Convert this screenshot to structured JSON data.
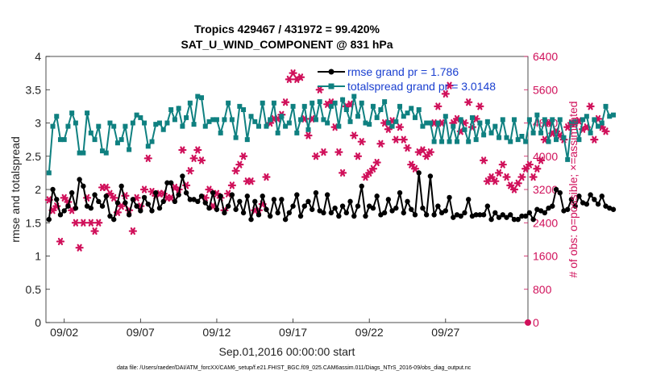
{
  "chart_data": {
    "type": "line",
    "title_line1": "Tropics 429467 / 431972 = 99.420%",
    "title_line2": "SAT_U_WIND_COMPONENT @ 831 hPa",
    "xlabel": "Sep.01,2016 00:00:00 start",
    "ylabel_left": "rmse and totalspread",
    "ylabel_right": "# of obs: o=possible; ×=assimilated",
    "xlim": [
      0.3,
      31.9
    ],
    "ylim_left": [
      0,
      4
    ],
    "ylim_right": [
      0,
      6400
    ],
    "x_ticks": [
      {
        "x": 1.5,
        "label": "09/02"
      },
      {
        "x": 6.5,
        "label": "09/07"
      },
      {
        "x": 11.5,
        "label": "09/12"
      },
      {
        "x": 16.5,
        "label": "09/17"
      },
      {
        "x": 21.5,
        "label": "09/22"
      },
      {
        "x": 26.5,
        "label": "09/27"
      }
    ],
    "y_ticks_left": [
      "0",
      "0.5",
      "1",
      "1.5",
      "2",
      "2.5",
      "3",
      "3.5",
      "4"
    ],
    "y_ticks_right": [
      "0",
      "800",
      "1600",
      "2400",
      "3200",
      "4000",
      "4800",
      "5600",
      "6400"
    ],
    "colors": {
      "rmse": "#000000",
      "spread": "#0f8080",
      "obs": "#d0105a",
      "legend_text": "#1a3fd0",
      "right_axis": "#d0105a"
    },
    "legend": [
      {
        "name": "rmse grand pr = 1.786"
      },
      {
        "name": "totalspread grand pr = 3.0148"
      }
    ],
    "series": [
      {
        "name": "rmse",
        "x0": 0.5,
        "dx": 0.25,
        "values": [
          1.55,
          2.0,
          1.85,
          1.62,
          1.68,
          1.75,
          1.95,
          1.72,
          2.15,
          2.05,
          1.75,
          1.72,
          1.92,
          1.82,
          1.75,
          1.9,
          1.6,
          1.55,
          1.8,
          2.05,
          1.8,
          1.62,
          1.85,
          1.75,
          1.68,
          1.88,
          1.78,
          1.68,
          1.95,
          1.72,
          1.82,
          2.1,
          2.1,
          1.82,
          1.92,
          2.2,
          1.95,
          1.85,
          1.85,
          1.82,
          1.9,
          1.8,
          1.72,
          1.95,
          1.7,
          1.9,
          1.65,
          1.75,
          1.92,
          1.7,
          1.82,
          1.65,
          1.9,
          1.55,
          1.82,
          1.62,
          1.9,
          1.7,
          1.6,
          1.85,
          1.65,
          1.85,
          1.55,
          1.65,
          1.75,
          1.92,
          1.6,
          1.75,
          1.82,
          1.7,
          1.95,
          1.68,
          1.65,
          1.92,
          1.65,
          1.72,
          1.6,
          1.75,
          1.65,
          1.82,
          1.6,
          1.75,
          2.05,
          1.6,
          1.75,
          1.72,
          1.9,
          1.62,
          1.65,
          1.85,
          1.68,
          1.72,
          1.95,
          1.65,
          1.82,
          1.7,
          1.62,
          2.25,
          1.72,
          1.62,
          2.2,
          1.62,
          1.75,
          1.65,
          1.68,
          1.88,
          1.58,
          1.62,
          1.6,
          1.65,
          1.85,
          1.6,
          1.62,
          1.62,
          1.62,
          1.75,
          1.55,
          1.65,
          1.58,
          1.62,
          1.58,
          1.62,
          1.55,
          1.55,
          1.6,
          1.6,
          1.65,
          1.55,
          1.7,
          1.68,
          1.65,
          1.72,
          1.75,
          2.0,
          1.95,
          1.68,
          1.7,
          1.85,
          1.75,
          1.9,
          1.8,
          1.78,
          1.92,
          1.85,
          1.78,
          1.9,
          1.75,
          1.72,
          1.7
        ]
      },
      {
        "name": "totalspread",
        "x0": 0.5,
        "dx": 0.25,
        "values": [
          2.25,
          2.95,
          3.1,
          2.75,
          2.75,
          2.95,
          3.15,
          3.0,
          2.55,
          2.55,
          3.15,
          2.85,
          2.75,
          2.95,
          2.58,
          2.55,
          3.0,
          2.95,
          2.7,
          2.75,
          2.95,
          2.6,
          3.0,
          3.12,
          3.08,
          3.0,
          2.65,
          2.72,
          2.98,
          3.0,
          2.9,
          3.0,
          3.2,
          3.05,
          3.22,
          2.95,
          3.08,
          3.3,
          2.98,
          3.4,
          3.38,
          2.95,
          3.02,
          3.05,
          3.05,
          2.85,
          3.05,
          3.3,
          3.05,
          2.78,
          3.25,
          3.2,
          2.75,
          3.1,
          3.02,
          2.95,
          3.3,
          2.95,
          3.05,
          3.3,
          2.85,
          3.1,
          2.95,
          3.0,
          3.25,
          2.85,
          3.05,
          3.25,
          2.9,
          3.3,
          3.05,
          3.32,
          3.05,
          3.0,
          3.25,
          3.3,
          2.95,
          3.35,
          3.2,
          3.02,
          3.4,
          3.1,
          3.3,
          3.0,
          2.98,
          3.25,
          3.08,
          3.2,
          3.32,
          3.0,
          2.95,
          3.02,
          3.25,
          3.1,
          3.15,
          3.22,
          3.08,
          3.2,
          2.95,
          3.0,
          3.0,
          2.72,
          3.0,
          2.72,
          3.1,
          2.72,
          2.95,
          2.72,
          3.05,
          2.9,
          2.72,
          3.08,
          2.75,
          3.0,
          2.82,
          3.02,
          2.85,
          2.95,
          2.78,
          3.05,
          2.78,
          2.72,
          3.05,
          2.75,
          2.8,
          2.72,
          3.05,
          2.85,
          3.12,
          2.85,
          3.05,
          2.72,
          3.05,
          2.75,
          3.05,
          2.78,
          2.45,
          3.0,
          3.02,
          2.75,
          3.05,
          3.1,
          2.85,
          3.05,
          2.95,
          3.0,
          3.25,
          3.1,
          3.12
        ]
      },
      {
        "name": "obs_count",
        "x0": 0.5,
        "dx": 0.25,
        "values": [
          2950,
          2700,
          2800,
          1950,
          3000,
          2900,
          2700,
          2400,
          1800,
          2400,
          3000,
          2400,
          2200,
          2400,
          3250,
          3250,
          3100,
          3000,
          2650,
          2800,
          3050,
          2700,
          2200,
          3000,
          2800,
          3200,
          3950,
          3150,
          3050,
          3100,
          3100,
          3000,
          3000,
          3250,
          3200,
          4150,
          3300,
          3650,
          3950,
          4150,
          3900,
          3000,
          3200,
          2800,
          3100,
          3000,
          2700,
          3100,
          3300,
          3650,
          3800,
          4000,
          3400,
          3400,
          2700,
          2700,
          2850,
          3500,
          4800,
          4900,
          4900,
          5000,
          5300,
          5850,
          6000,
          5850,
          5900,
          4900,
          4500,
          4900,
          4000,
          5600,
          4100,
          5250,
          5300,
          4700,
          4100,
          3600,
          5200,
          5250,
          4500,
          4000,
          4350,
          3500,
          3600,
          3700,
          3850,
          4300,
          4800,
          4650,
          4850,
          4400,
          4700,
          4400,
          4200,
          3800,
          3700,
          4100,
          4150,
          4000,
          4100,
          4800,
          5200,
          4800,
          5500,
          5700,
          4800,
          4900,
          4600,
          4800,
          5300,
          4700,
          4900,
          5200,
          3900,
          3400,
          3500,
          3400,
          3600,
          3800,
          3500,
          3300,
          3200,
          3350,
          3500,
          3700,
          3800,
          3500,
          3700,
          3900,
          4400,
          4800,
          4550,
          4600,
          4500,
          4400,
          4700,
          4800,
          4800,
          4850,
          4650,
          4700,
          5200,
          4400,
          4900,
          4700,
          4600
        ]
      }
    ],
    "obs_last": 0,
    "footer": "data file: /Users/raeder/DAI/ATM_forcXX/CAM6_setup/f.e21.FHIST_BGC.f09_025.CAM6assim.011/Diags_NTrS_2016-09/obs_diag_output.nc"
  }
}
